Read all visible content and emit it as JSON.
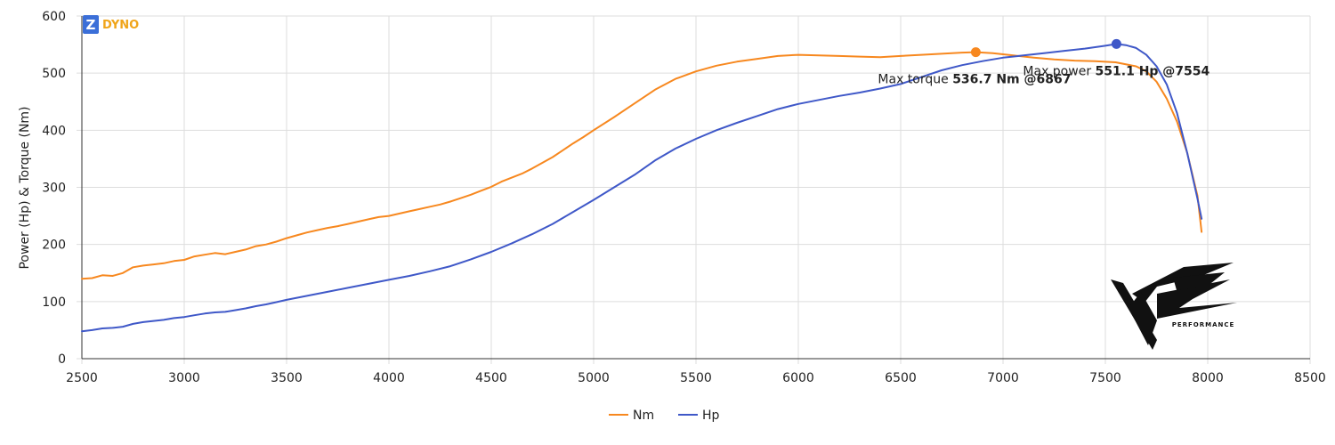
{
  "brand": {
    "badge_letter": "Z",
    "name": "DYNO",
    "badge_color": "#3b6fd8",
    "text_color": "#f0a51a"
  },
  "watermark": {
    "text": "PERFORMANCE",
    "description_icon": "vze-performance-logo"
  },
  "colors": {
    "torque": "#f7881f",
    "power": "#3f58c8",
    "grid": "#dddddd",
    "axis": "#333333"
  },
  "chart_data": {
    "type": "line",
    "title": "",
    "xlabel": "",
    "ylabel": "Power (Hp) & Torque (Nm)",
    "xlim": [
      2500,
      8500
    ],
    "ylim": [
      0,
      600
    ],
    "xticks": [
      2500,
      3000,
      3500,
      4000,
      4500,
      5000,
      5500,
      6000,
      6500,
      7000,
      7500,
      8000,
      8500
    ],
    "yticks": [
      0,
      100,
      200,
      300,
      400,
      500,
      600
    ],
    "grid": true,
    "legend_position": "bottom-center",
    "series": [
      {
        "name": "Nm",
        "color": "#f7881f",
        "points": [
          [
            2500,
            140
          ],
          [
            2550,
            141
          ],
          [
            2600,
            146
          ],
          [
            2650,
            145
          ],
          [
            2700,
            150
          ],
          [
            2750,
            160
          ],
          [
            2800,
            163
          ],
          [
            2850,
            165
          ],
          [
            2900,
            167
          ],
          [
            2950,
            171
          ],
          [
            3000,
            173
          ],
          [
            3050,
            179
          ],
          [
            3100,
            182
          ],
          [
            3150,
            185
          ],
          [
            3200,
            183
          ],
          [
            3250,
            187
          ],
          [
            3300,
            191
          ],
          [
            3350,
            197
          ],
          [
            3400,
            200
          ],
          [
            3450,
            205
          ],
          [
            3500,
            211
          ],
          [
            3550,
            216
          ],
          [
            3600,
            221
          ],
          [
            3650,
            225
          ],
          [
            3700,
            229
          ],
          [
            3750,
            232
          ],
          [
            3800,
            236
          ],
          [
            3850,
            240
          ],
          [
            3900,
            244
          ],
          [
            3950,
            248
          ],
          [
            4000,
            250
          ],
          [
            4050,
            254
          ],
          [
            4100,
            258
          ],
          [
            4150,
            262
          ],
          [
            4200,
            266
          ],
          [
            4250,
            270
          ],
          [
            4300,
            275
          ],
          [
            4350,
            281
          ],
          [
            4400,
            287
          ],
          [
            4450,
            294
          ],
          [
            4500,
            301
          ],
          [
            4550,
            310
          ],
          [
            4600,
            317
          ],
          [
            4650,
            324
          ],
          [
            4700,
            333
          ],
          [
            4750,
            343
          ],
          [
            4800,
            353
          ],
          [
            4850,
            365
          ],
          [
            4900,
            377
          ],
          [
            4950,
            388
          ],
          [
            5000,
            400
          ],
          [
            5100,
            423
          ],
          [
            5200,
            447
          ],
          [
            5300,
            471
          ],
          [
            5400,
            490
          ],
          [
            5500,
            503
          ],
          [
            5600,
            513
          ],
          [
            5700,
            520
          ],
          [
            5800,
            525
          ],
          [
            5900,
            530
          ],
          [
            6000,
            532
          ],
          [
            6100,
            531
          ],
          [
            6200,
            530
          ],
          [
            6300,
            529
          ],
          [
            6400,
            528
          ],
          [
            6500,
            530
          ],
          [
            6600,
            532
          ],
          [
            6700,
            534
          ],
          [
            6800,
            536
          ],
          [
            6867,
            536.7
          ],
          [
            6950,
            535
          ],
          [
            7050,
            531
          ],
          [
            7150,
            527
          ],
          [
            7250,
            524
          ],
          [
            7350,
            522
          ],
          [
            7450,
            521
          ],
          [
            7550,
            519
          ],
          [
            7650,
            512
          ],
          [
            7700,
            503
          ],
          [
            7750,
            485
          ],
          [
            7800,
            455
          ],
          [
            7850,
            415
          ],
          [
            7900,
            360
          ],
          [
            7950,
            285
          ],
          [
            7970,
            222
          ]
        ]
      },
      {
        "name": "Hp",
        "color": "#3f58c8",
        "points": [
          [
            2500,
            48
          ],
          [
            2550,
            50
          ],
          [
            2600,
            53
          ],
          [
            2650,
            54
          ],
          [
            2700,
            56
          ],
          [
            2750,
            61
          ],
          [
            2800,
            64
          ],
          [
            2850,
            66
          ],
          [
            2900,
            68
          ],
          [
            2950,
            71
          ],
          [
            3000,
            73
          ],
          [
            3050,
            76
          ],
          [
            3100,
            79
          ],
          [
            3150,
            81
          ],
          [
            3200,
            82
          ],
          [
            3250,
            85
          ],
          [
            3300,
            88
          ],
          [
            3350,
            92
          ],
          [
            3400,
            95
          ],
          [
            3450,
            99
          ],
          [
            3500,
            103
          ],
          [
            3600,
            110
          ],
          [
            3700,
            117
          ],
          [
            3800,
            124
          ],
          [
            3900,
            131
          ],
          [
            4000,
            138
          ],
          [
            4100,
            145
          ],
          [
            4200,
            153
          ],
          [
            4300,
            162
          ],
          [
            4400,
            174
          ],
          [
            4500,
            187
          ],
          [
            4600,
            202
          ],
          [
            4700,
            218
          ],
          [
            4800,
            236
          ],
          [
            4900,
            257
          ],
          [
            5000,
            278
          ],
          [
            5100,
            300
          ],
          [
            5200,
            322
          ],
          [
            5300,
            347
          ],
          [
            5400,
            368
          ],
          [
            5500,
            385
          ],
          [
            5600,
            400
          ],
          [
            5700,
            413
          ],
          [
            5800,
            425
          ],
          [
            5900,
            437
          ],
          [
            6000,
            446
          ],
          [
            6100,
            453
          ],
          [
            6200,
            460
          ],
          [
            6300,
            466
          ],
          [
            6400,
            473
          ],
          [
            6500,
            481
          ],
          [
            6600,
            493
          ],
          [
            6700,
            505
          ],
          [
            6800,
            514
          ],
          [
            6900,
            521
          ],
          [
            7000,
            527
          ],
          [
            7100,
            531
          ],
          [
            7200,
            535
          ],
          [
            7300,
            539
          ],
          [
            7400,
            543
          ],
          [
            7500,
            548
          ],
          [
            7554,
            551.1
          ],
          [
            7600,
            549
          ],
          [
            7650,
            544
          ],
          [
            7700,
            532
          ],
          [
            7750,
            512
          ],
          [
            7800,
            480
          ],
          [
            7850,
            430
          ],
          [
            7900,
            360
          ],
          [
            7950,
            280
          ],
          [
            7970,
            245
          ]
        ]
      }
    ],
    "annotations": [
      {
        "series": "Nm",
        "x": 6867,
        "y": 536.7,
        "prefix": "Max torque ",
        "value": "536.7 Nm @6867"
      },
      {
        "series": "Hp",
        "x": 7554,
        "y": 551.1,
        "prefix": "Max power ",
        "value": "551.1 Hp @7554"
      }
    ]
  }
}
